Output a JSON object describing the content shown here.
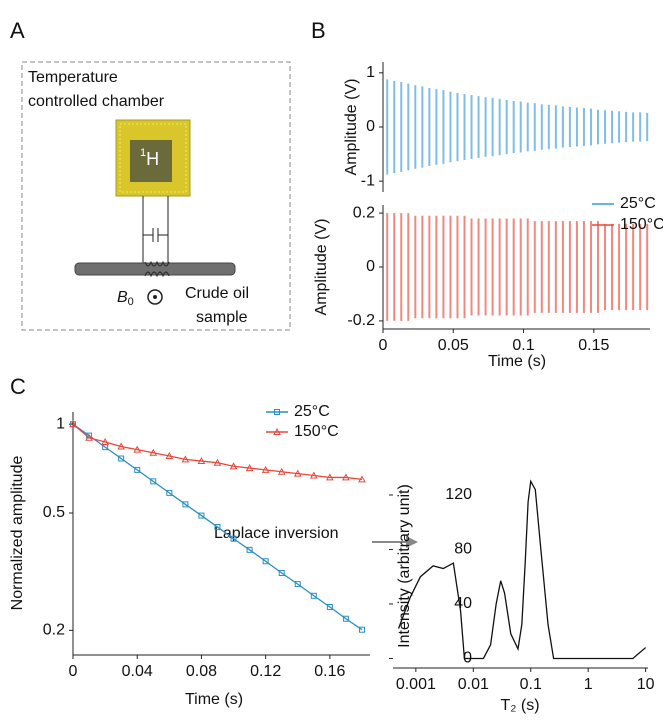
{
  "panel_labels": [
    "A",
    "B",
    "C"
  ],
  "diagram": {
    "chamber": [
      "Temperature",
      "controlled chamber"
    ],
    "nucleus_mass": "1",
    "nucleus": "H",
    "field": "B",
    "field_sub": "0",
    "sample": [
      "Crude oil",
      "sample"
    ]
  },
  "annotation": "Laplace inversion",
  "chart_data": [
    {
      "type": "waveform",
      "y_label": "Amplitude (V)",
      "x": [
        0.003,
        0.008,
        0.013,
        0.018,
        0.023,
        0.028,
        0.033,
        0.038,
        0.043,
        0.048,
        0.053,
        0.058,
        0.063,
        0.068,
        0.073,
        0.078,
        0.083,
        0.088,
        0.093,
        0.098,
        0.103,
        0.108,
        0.113,
        0.118,
        0.123,
        0.128,
        0.133,
        0.138,
        0.143,
        0.148,
        0.153,
        0.158,
        0.163,
        0.168,
        0.173,
        0.178,
        0.183,
        0.188
      ],
      "series": [
        {
          "name": "25°C",
          "color": "#3a9ad9",
          "values": [
            0.88,
            0.85,
            0.83,
            0.8,
            0.77,
            0.75,
            0.72,
            0.7,
            0.68,
            0.65,
            0.63,
            0.61,
            0.59,
            0.57,
            0.55,
            0.54,
            0.52,
            0.5,
            0.48,
            0.47,
            0.45,
            0.44,
            0.42,
            0.41,
            0.4,
            0.38,
            0.37,
            0.36,
            0.35,
            0.34,
            0.32,
            0.31,
            0.3,
            0.29,
            0.28,
            0.27,
            0.27,
            0.26
          ]
        }
      ],
      "xlim": [
        0,
        0.19
      ],
      "ylim": [
        -1.2,
        1.2
      ],
      "yticks": [
        -1,
        0,
        1
      ]
    },
    {
      "type": "waveform",
      "y_label": "Amplitude (V)",
      "x_label": "Time (s)",
      "x": [
        0.003,
        0.008,
        0.013,
        0.018,
        0.023,
        0.028,
        0.033,
        0.038,
        0.043,
        0.048,
        0.053,
        0.058,
        0.063,
        0.068,
        0.073,
        0.078,
        0.083,
        0.088,
        0.093,
        0.098,
        0.103,
        0.108,
        0.113,
        0.118,
        0.123,
        0.128,
        0.133,
        0.138,
        0.143,
        0.148,
        0.153,
        0.158,
        0.163,
        0.168,
        0.173,
        0.178,
        0.183,
        0.188
      ],
      "series": [
        {
          "name": "150°C",
          "color": "#e8483a",
          "values": [
            0.2,
            0.2,
            0.2,
            0.2,
            0.19,
            0.19,
            0.19,
            0.19,
            0.19,
            0.19,
            0.19,
            0.19,
            0.18,
            0.18,
            0.18,
            0.18,
            0.18,
            0.18,
            0.18,
            0.18,
            0.18,
            0.17,
            0.17,
            0.17,
            0.17,
            0.17,
            0.17,
            0.17,
            0.17,
            0.17,
            0.17,
            0.16,
            0.16,
            0.16,
            0.16,
            0.16,
            0.16,
            0.16
          ]
        }
      ],
      "xlim": [
        0,
        0.19
      ],
      "ylim": [
        -0.23,
        0.23
      ],
      "xticks": [
        0,
        0.05,
        0.1,
        0.15
      ],
      "yticks": [
        -0.2,
        0,
        0.2
      ]
    },
    {
      "type": "line",
      "x_label": "Time (s)",
      "y_label": "Normalized amplitude",
      "yscale": "log",
      "x": [
        0,
        0.01,
        0.02,
        0.03,
        0.04,
        0.05,
        0.06,
        0.07,
        0.08,
        0.09,
        0.1,
        0.11,
        0.12,
        0.13,
        0.14,
        0.15,
        0.16,
        0.17,
        0.18
      ],
      "series": [
        {
          "name": "25°C",
          "color": "#2a8fc7",
          "marker": "square",
          "values": [
            1,
            0.915,
            0.836,
            0.765,
            0.7,
            0.64,
            0.585,
            0.535,
            0.49,
            0.448,
            0.409,
            0.375,
            0.343,
            0.313,
            0.287,
            0.262,
            0.24,
            0.219,
            0.201
          ]
        },
        {
          "name": "150°C",
          "color": "#e8483a",
          "marker": "triangle",
          "values": [
            1,
            0.9,
            0.87,
            0.84,
            0.82,
            0.8,
            0.78,
            0.76,
            0.75,
            0.74,
            0.72,
            0.71,
            0.7,
            0.69,
            0.68,
            0.67,
            0.66,
            0.66,
            0.65
          ]
        }
      ],
      "xlim": [
        0,
        0.185
      ],
      "ylim": [
        0.165,
        1.1
      ],
      "xticks": [
        0,
        0.04,
        0.08,
        0.12,
        0.16
      ],
      "yticks": [
        0.2,
        0.5,
        1
      ]
    },
    {
      "type": "line",
      "x_label": "T₂ (s)",
      "y_label": "Intensity (arbitrary unit)",
      "xscale": "log",
      "x": [
        0.0005,
        0.0008,
        0.0012,
        0.002,
        0.003,
        0.0045,
        0.006,
        0.007,
        0.015,
        0.02,
        0.025,
        0.03,
        0.035,
        0.045,
        0.06,
        0.07,
        0.08,
        0.09,
        0.1,
        0.12,
        0.15,
        0.2,
        0.25,
        6,
        10
      ],
      "series": [
        {
          "color": "#111111",
          "values": [
            22,
            45,
            60,
            68,
            66,
            70,
            35,
            0,
            0,
            10,
            40,
            57,
            48,
            18,
            7,
            25,
            70,
            115,
            130,
            124,
            80,
            25,
            0,
            0,
            8
          ]
        }
      ],
      "xlim": [
        0.0004,
        11
      ],
      "ylim": [
        -7,
        142
      ],
      "xticks": [
        0.001,
        0.01,
        0.1,
        1,
        10
      ],
      "yticks": [
        0,
        40,
        80,
        120
      ]
    }
  ]
}
